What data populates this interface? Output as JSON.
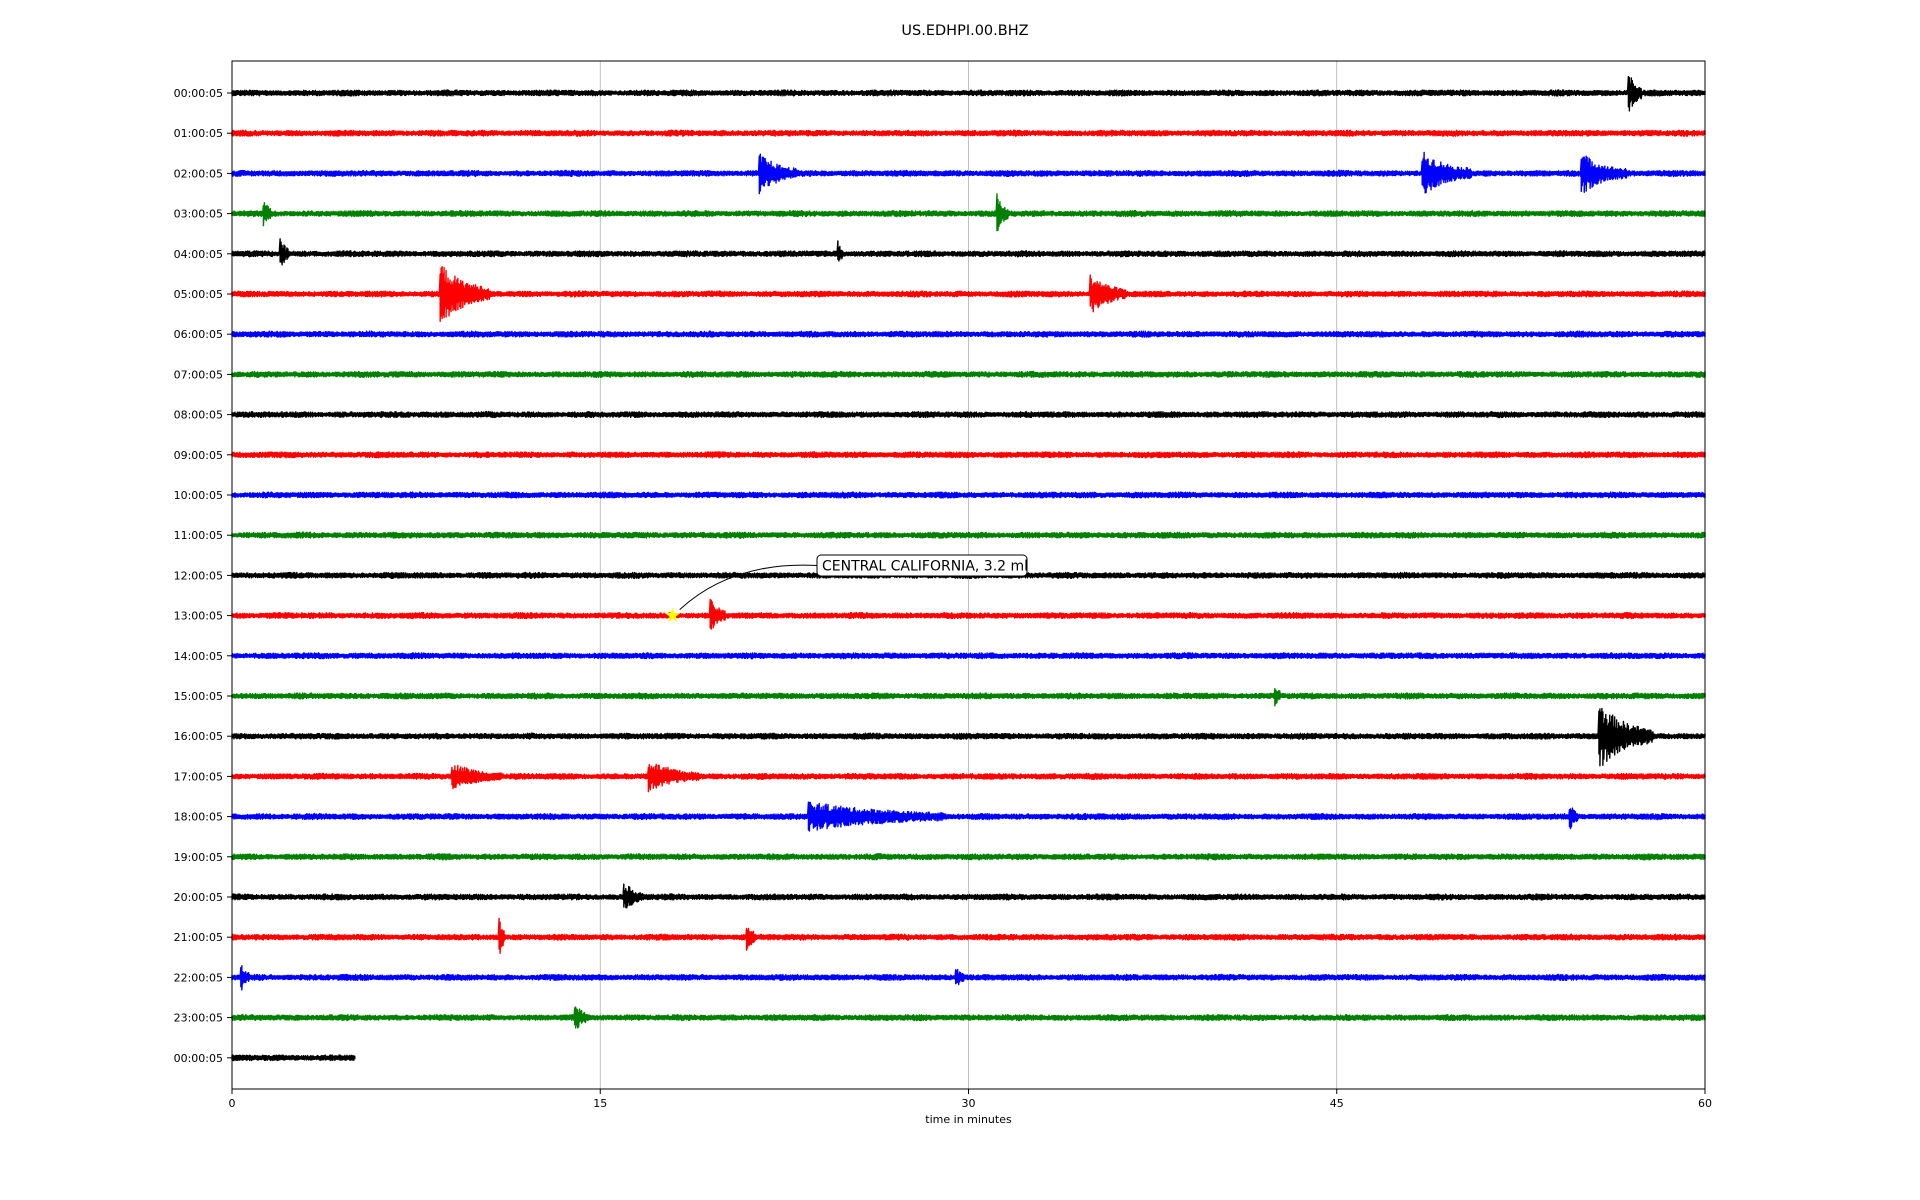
{
  "chart_data": {
    "type": "line",
    "title": "US.EDHPI.00.BHZ",
    "xlabel": "time in minutes",
    "ylabel": "",
    "xlim": [
      0,
      60
    ],
    "x_ticks": [
      0,
      15,
      30,
      45,
      60
    ],
    "x_tick_labels": [
      "0",
      "15",
      "30",
      "45",
      "60"
    ],
    "grid": "vertical",
    "row_labels": [
      "00:00:05",
      "01:00:05",
      "02:00:05",
      "03:00:05",
      "04:00:05",
      "05:00:05",
      "06:00:05",
      "07:00:05",
      "08:00:05",
      "09:00:05",
      "10:00:05",
      "11:00:05",
      "12:00:05",
      "13:00:05",
      "14:00:05",
      "15:00:05",
      "16:00:05",
      "17:00:05",
      "18:00:05",
      "19:00:05",
      "20:00:05",
      "21:00:05",
      "22:00:05",
      "23:00:05",
      "00:00:05"
    ],
    "row_colors": [
      "#000000",
      "#ff0000",
      "#0000ff",
      "#008000"
    ],
    "row_end_minutes": [
      60,
      60,
      60,
      60,
      60,
      60,
      60,
      60,
      60,
      60,
      60,
      60,
      60,
      60,
      60,
      60,
      60,
      60,
      60,
      60,
      60,
      60,
      60,
      60,
      5
    ],
    "events": [
      {
        "row": 0,
        "minute": 56.9,
        "amplitude": 2.5,
        "duration_min": 0.5
      },
      {
        "row": 2,
        "minute": 21.5,
        "amplitude": 2.0,
        "duration_min": 1.5
      },
      {
        "row": 2,
        "minute": 48.5,
        "amplitude": 2.2,
        "duration_min": 2.0
      },
      {
        "row": 2,
        "minute": 55.0,
        "amplitude": 2.0,
        "duration_min": 1.8
      },
      {
        "row": 3,
        "minute": 1.3,
        "amplitude": 1.2,
        "duration_min": 0.3
      },
      {
        "row": 3,
        "minute": 31.2,
        "amplitude": 2.0,
        "duration_min": 0.4
      },
      {
        "row": 4,
        "minute": 2.0,
        "amplitude": 1.5,
        "duration_min": 0.3
      },
      {
        "row": 4,
        "minute": 24.7,
        "amplitude": 1.2,
        "duration_min": 0.2
      },
      {
        "row": 5,
        "minute": 8.5,
        "amplitude": 3.2,
        "duration_min": 2.0
      },
      {
        "row": 5,
        "minute": 35.0,
        "amplitude": 2.0,
        "duration_min": 1.4
      },
      {
        "row": 13,
        "minute": 19.5,
        "amplitude": 1.5,
        "duration_min": 0.6
      },
      {
        "row": 15,
        "minute": 42.5,
        "amplitude": 1.0,
        "duration_min": 0.2
      },
      {
        "row": 16,
        "minute": 55.7,
        "amplitude": 3.5,
        "duration_min": 2.2
      },
      {
        "row": 17,
        "minute": 9.0,
        "amplitude": 1.2,
        "duration_min": 2.0
      },
      {
        "row": 17,
        "minute": 17.0,
        "amplitude": 1.5,
        "duration_min": 2.0
      },
      {
        "row": 18,
        "minute": 23.5,
        "amplitude": 1.5,
        "duration_min": 5.5
      },
      {
        "row": 18,
        "minute": 54.5,
        "amplitude": 1.2,
        "duration_min": 0.3
      },
      {
        "row": 20,
        "minute": 16.0,
        "amplitude": 1.3,
        "duration_min": 0.8
      },
      {
        "row": 21,
        "minute": 10.9,
        "amplitude": 2.0,
        "duration_min": 0.2
      },
      {
        "row": 21,
        "minute": 21.0,
        "amplitude": 1.3,
        "duration_min": 0.3
      },
      {
        "row": 22,
        "minute": 0.4,
        "amplitude": 1.2,
        "duration_min": 0.3
      },
      {
        "row": 22,
        "minute": 29.5,
        "amplitude": 1.0,
        "duration_min": 0.3
      },
      {
        "row": 23,
        "minute": 14.0,
        "amplitude": 1.3,
        "duration_min": 0.4
      }
    ],
    "annotations": [
      {
        "text": "CENTRAL CALIFORNIA, 3.2 ml",
        "row": 13,
        "minute": 17.95,
        "marker": "star",
        "marker_color": "#ffff00"
      }
    ]
  }
}
